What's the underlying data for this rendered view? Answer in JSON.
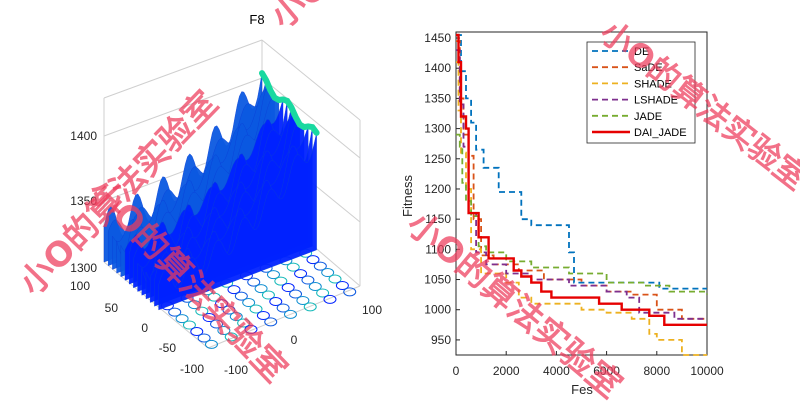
{
  "chart_data": [
    {
      "type": "surface",
      "title": "F8",
      "x_ticks": [
        "-100",
        "0",
        "100"
      ],
      "y_ticks": [
        "-100",
        "-50",
        "0",
        "50",
        "100"
      ],
      "z_ticks": [
        "1300",
        "1350",
        "1400"
      ],
      "zlim": [
        1300,
        1430
      ],
      "colormap": [
        "#0022ff",
        "#0b58e0",
        "#0e8dd0",
        "#12b8b8",
        "#19d9a0"
      ]
    },
    {
      "type": "line",
      "xlabel": "Fes",
      "ylabel": "Fitness",
      "xlim": [
        0,
        10000
      ],
      "ylim": [
        925,
        1460
      ],
      "x_ticks": [
        "0",
        "2000",
        "4000",
        "6000",
        "8000",
        "10000"
      ],
      "y_ticks": [
        "950",
        "1000",
        "1050",
        "1100",
        "1150",
        "1200",
        "1250",
        "1300",
        "1350",
        "1400",
        "1450"
      ],
      "legend_position": "top-right",
      "series": [
        {
          "name": "DE",
          "color": "#0072bd",
          "dash": "6,4",
          "points": [
            [
              0,
              1455
            ],
            [
              200,
              1395
            ],
            [
              400,
              1350
            ],
            [
              600,
              1310
            ],
            [
              800,
              1265
            ],
            [
              1100,
              1235
            ],
            [
              1500,
              1235
            ],
            [
              1700,
              1195
            ],
            [
              2200,
              1195
            ],
            [
              2600,
              1150
            ],
            [
              3000,
              1140
            ],
            [
              3900,
              1140
            ],
            [
              4500,
              1095
            ],
            [
              4700,
              1045
            ],
            [
              8000,
              1045
            ],
            [
              8100,
              1035
            ],
            [
              10000,
              1035
            ]
          ]
        },
        {
          "name": "SaDE",
          "color": "#d95319",
          "dash": "6,4",
          "points": [
            [
              0,
              1445
            ],
            [
              150,
              1350
            ],
            [
              300,
              1290
            ],
            [
              500,
              1255
            ],
            [
              700,
              1150
            ],
            [
              1000,
              1090
            ],
            [
              1500,
              1075
            ],
            [
              2500,
              1065
            ],
            [
              3500,
              1050
            ],
            [
              5000,
              1040
            ],
            [
              6000,
              1030
            ],
            [
              7000,
              1025
            ],
            [
              8000,
              1000
            ],
            [
              9000,
              985
            ],
            [
              10000,
              985
            ]
          ]
        },
        {
          "name": "SHADE",
          "color": "#edb120",
          "dash": "6,4",
          "points": [
            [
              0,
              1410
            ],
            [
              100,
              1330
            ],
            [
              200,
              1260
            ],
            [
              400,
              1200
            ],
            [
              600,
              1100
            ],
            [
              1000,
              1060
            ],
            [
              2000,
              1045
            ],
            [
              2500,
              1020
            ],
            [
              3000,
              1010
            ],
            [
              4000,
              1010
            ],
            [
              5000,
              1000
            ],
            [
              6000,
              995
            ],
            [
              7000,
              985
            ],
            [
              7700,
              960
            ],
            [
              8000,
              950
            ],
            [
              9000,
              925
            ],
            [
              9500,
              925
            ],
            [
              10000,
              925
            ]
          ]
        },
        {
          "name": "LSHADE",
          "color": "#7e2f8e",
          "dash": "6,4",
          "points": [
            [
              0,
              1430
            ],
            [
              150,
              1340
            ],
            [
              300,
              1270
            ],
            [
              500,
              1160
            ],
            [
              800,
              1095
            ],
            [
              1200,
              1075
            ],
            [
              2000,
              1060
            ],
            [
              3000,
              1050
            ],
            [
              4500,
              1040
            ],
            [
              6000,
              1030
            ],
            [
              6800,
              1020
            ],
            [
              7300,
              995
            ],
            [
              8000,
              995
            ],
            [
              8700,
              985
            ],
            [
              10000,
              985
            ]
          ]
        },
        {
          "name": "JADE",
          "color": "#77ac30",
          "dash": "6,4",
          "points": [
            [
              0,
              1290
            ],
            [
              150,
              1270
            ],
            [
              250,
              1210
            ],
            [
              400,
              1180
            ],
            [
              600,
              1155
            ],
            [
              900,
              1105
            ],
            [
              1200,
              1095
            ],
            [
              2000,
              1080
            ],
            [
              3000,
              1070
            ],
            [
              4500,
              1060
            ],
            [
              6000,
              1045
            ],
            [
              7500,
              1040
            ],
            [
              8500,
              1030
            ],
            [
              10000,
              1025
            ]
          ]
        },
        {
          "name": "DAI_JADE",
          "color": "#e60000",
          "dash": "",
          "points": [
            [
              0,
              1455
            ],
            [
              100,
              1410
            ],
            [
              200,
              1320
            ],
            [
              400,
              1300
            ],
            [
              500,
              1160
            ],
            [
              900,
              1120
            ],
            [
              1200,
              1120
            ],
            [
              1300,
              1085
            ],
            [
              2000,
              1085
            ],
            [
              2300,
              1065
            ],
            [
              2500,
              1065
            ],
            [
              2600,
              1055
            ],
            [
              3000,
              1045
            ],
            [
              3400,
              1030
            ],
            [
              3800,
              1020
            ],
            [
              5500,
              1020
            ],
            [
              5700,
              1010
            ],
            [
              6400,
              1010
            ],
            [
              6600,
              1000
            ],
            [
              7500,
              1000
            ],
            [
              7700,
              990
            ],
            [
              8200,
              990
            ],
            [
              8300,
              975
            ],
            [
              10000,
              975
            ]
          ]
        }
      ]
    }
  ],
  "watermark": {
    "text": "小O的算法实验室",
    "color": "#ee3b5b"
  }
}
